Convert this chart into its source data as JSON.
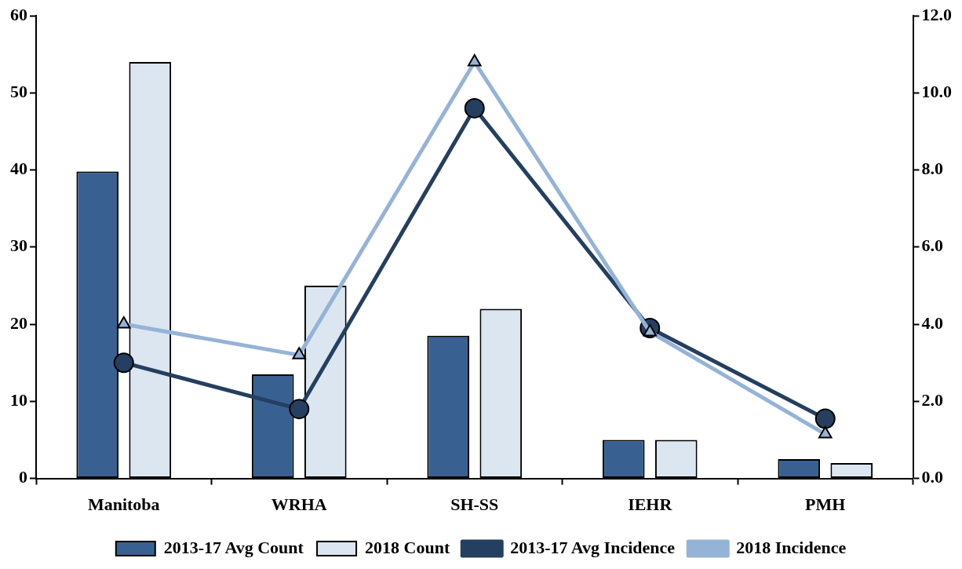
{
  "chart_data": {
    "type": "bar",
    "categories": [
      "Manitoba",
      "WRHA",
      "SH-SS",
      "IEHR",
      "PMH"
    ],
    "series": [
      {
        "name": "2013-17 Avg Count",
        "color": "#386192",
        "values": [
          39.8,
          13.5,
          18.5,
          5,
          2.5
        ]
      },
      {
        "name": "2018 Count",
        "color": "#dce6f1",
        "values": [
          54,
          25,
          22,
          5,
          2
        ]
      },
      {
        "name": "2013-17 Avg Incidence",
        "type": "line",
        "axis": "y2",
        "color": "#243f60",
        "marker": "circle",
        "values": [
          3.0,
          1.8,
          9.6,
          3.9,
          1.55
        ]
      },
      {
        "name": "2018 Incidence",
        "type": "line",
        "axis": "y2",
        "color": "#95b3d7",
        "marker": "triangle",
        "values": [
          4.0,
          3.2,
          10.8,
          3.8,
          1.15
        ]
      }
    ],
    "ylim": [
      0,
      60
    ],
    "yticks": [
      0,
      10,
      20,
      30,
      40,
      50,
      60
    ],
    "y2lim": [
      0,
      12
    ],
    "y2ticks": [
      {
        "value": 0,
        "label": "0.0"
      },
      {
        "value": 2,
        "label": "2.0"
      },
      {
        "value": 4,
        "label": "4.0"
      },
      {
        "value": 6,
        "label": "6.0"
      },
      {
        "value": 8,
        "label": "8.0"
      },
      {
        "value": 10,
        "label": "10.0"
      },
      {
        "value": 12,
        "label": "12.0"
      }
    ],
    "grid": false,
    "legend": "bottom"
  }
}
